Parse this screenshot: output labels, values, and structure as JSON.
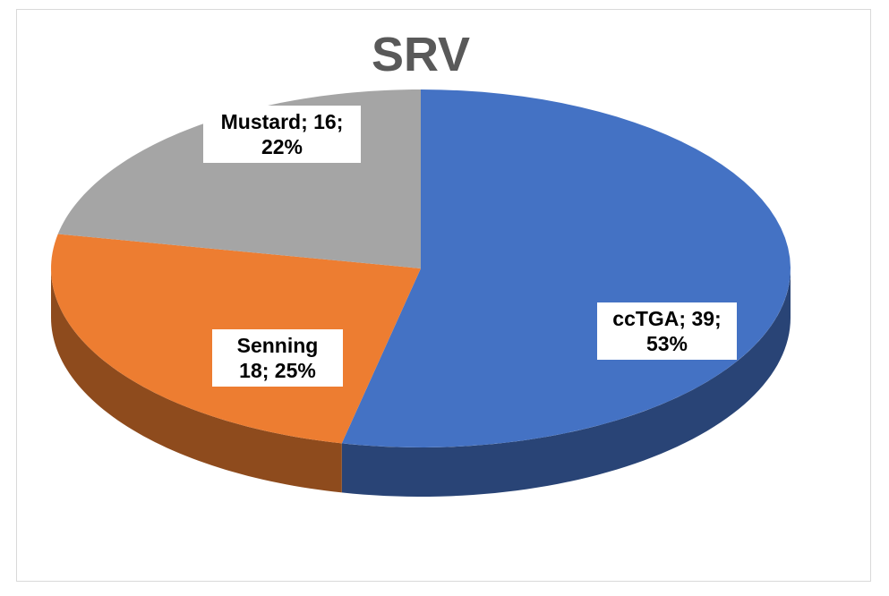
{
  "chart_data": {
    "type": "pie",
    "title": "SRV",
    "categories": [
      "ccTGA",
      "Senning",
      "Mustard"
    ],
    "values": [
      39,
      18,
      16
    ],
    "value_labels": [
      "ccTGA; 39; 53%",
      "Senning 18; 25%",
      "Mustard; 16; 22%"
    ],
    "colors": [
      "#4472c4",
      "#ed7d31",
      "#a5a5a5"
    ]
  }
}
